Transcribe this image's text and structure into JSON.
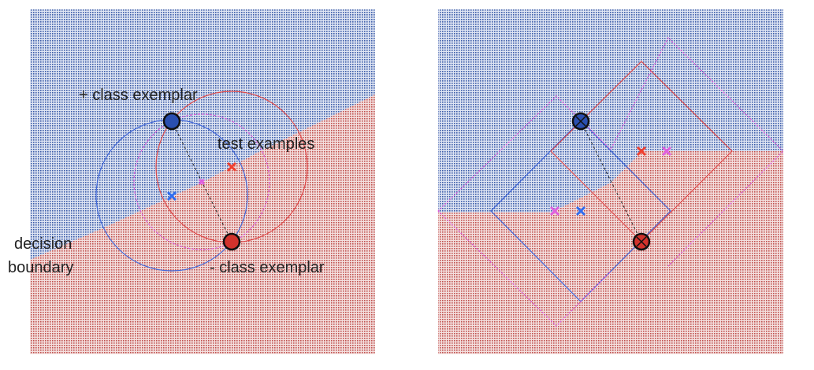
{
  "colors": {
    "positive_region": "#3b5ca8",
    "negative_region": "#c0504d",
    "exemplar_positive": "#2a4fb0",
    "exemplar_negative": "#d2322c",
    "circle_blue": "#3f66d9",
    "circle_red": "#e04848",
    "circle_magenta": "#d95ad9",
    "test_blue": "#2f6df0",
    "test_red": "#f04030",
    "test_magenta": "#e060e0"
  },
  "left_panel": {
    "label_positive_exemplar": "+ class exemplar",
    "label_test_examples": "test examples",
    "label_decision": "decision",
    "label_boundary": "boundary",
    "label_negative_exemplar": "- class exemplar"
  },
  "right_panel": {}
}
